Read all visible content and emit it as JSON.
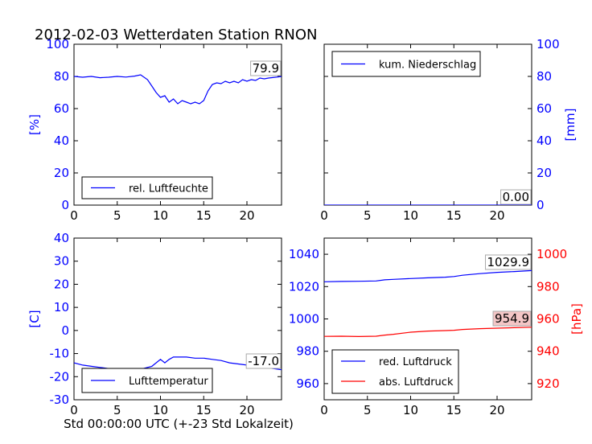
{
  "figure": {
    "title": "2012-02-03 Wetterdaten Station RNON",
    "xlabel": "Std 00:00:00 UTC (+-23 Std Lokalzeit)"
  },
  "colors": {
    "blue": "#0000ff",
    "red": "#ff0000",
    "black": "#000000"
  },
  "chart_data": [
    {
      "type": "line",
      "panel": "top-left",
      "xlim": [
        0,
        24
      ],
      "ylim": [
        0,
        100
      ],
      "xticks": [
        0,
        5,
        10,
        15,
        20
      ],
      "yticks": [
        0,
        20,
        40,
        60,
        80,
        100
      ],
      "ylabel": "[%]",
      "ylabel_color": "#0000ff",
      "legend_position": "lower-left",
      "series": [
        {
          "name": "rel. Luftfeuchte",
          "color": "#0000ff",
          "x": [
            0,
            1,
            2,
            3,
            4,
            5,
            6,
            7,
            7.7,
            8.5,
            9,
            9.5,
            10,
            10.5,
            11,
            11.5,
            12,
            12.5,
            13,
            13.5,
            14,
            14.5,
            15,
            15.5,
            16,
            16.5,
            17,
            17.5,
            18,
            18.5,
            19,
            19.5,
            20,
            20.5,
            21,
            21.5,
            22,
            22.5,
            23,
            24
          ],
          "y": [
            80,
            79.5,
            80,
            79.2,
            79.5,
            80,
            79.6,
            80.2,
            81,
            78,
            74,
            70,
            67,
            68,
            64,
            66,
            63,
            65,
            64,
            63,
            64,
            63,
            65,
            71,
            75,
            76,
            75.5,
            77,
            76,
            77,
            76,
            78,
            77,
            78,
            77.5,
            79,
            78.5,
            79,
            79.3,
            79.9
          ]
        }
      ],
      "annotation": "79.9"
    },
    {
      "type": "line",
      "panel": "top-right",
      "xlim": [
        0,
        24
      ],
      "ylim": [
        0,
        100
      ],
      "xticks": [
        0,
        5,
        10,
        15,
        20
      ],
      "yticks": [
        0,
        20,
        40,
        60,
        80,
        100
      ],
      "ylabel": "[mm]",
      "ylabel_color": "#0000ff",
      "legend_position": "top-left",
      "series": [
        {
          "name": "kum. Niederschlag",
          "color": "#0000ff",
          "x": [
            0,
            24
          ],
          "y": [
            0,
            0
          ]
        }
      ],
      "annotation": "0.00"
    },
    {
      "type": "line",
      "panel": "bottom-left",
      "xlim": [
        0,
        24
      ],
      "ylim": [
        -30,
        40
      ],
      "xticks": [
        0,
        5,
        10,
        15,
        20
      ],
      "yticks": [
        -30,
        -20,
        -10,
        0,
        10,
        20,
        30,
        40
      ],
      "ylabel": "[C]",
      "ylabel_color": "#0000ff",
      "legend_position": "lower-left",
      "series": [
        {
          "name": "Lufttemperatur",
          "color": "#0000ff",
          "x": [
            0,
            1,
            2,
            3,
            4,
            5,
            6,
            7,
            8,
            9,
            9.5,
            10,
            10.5,
            11,
            11.5,
            12,
            13,
            14,
            15,
            16,
            17,
            18,
            19,
            20,
            21,
            22,
            23,
            24
          ],
          "y": [
            -14,
            -15,
            -15.5,
            -16,
            -16.5,
            -17,
            -17,
            -17,
            -16.5,
            -15.5,
            -14,
            -12.5,
            -14,
            -12.5,
            -11.5,
            -11.5,
            -11.5,
            -12,
            -12,
            -12.5,
            -13,
            -14,
            -14.5,
            -15,
            -15.5,
            -16,
            -16.5,
            -17
          ]
        }
      ],
      "annotation": "-17.0"
    },
    {
      "type": "line",
      "panel": "bottom-right",
      "xlim": [
        0,
        24
      ],
      "ylim": [
        950,
        1050
      ],
      "xticks": [
        0,
        5,
        10,
        15,
        20
      ],
      "yticks": [
        960,
        980,
        1000,
        1020,
        1040
      ],
      "ylim_right": [
        910,
        1010
      ],
      "yticks_right": [
        920,
        940,
        960,
        980,
        1000
      ],
      "ylabel_right": "[hPa]",
      "ylabel_right_color": "#ff0000",
      "legend_position": "lower-left",
      "series": [
        {
          "name": "red. Luftdruck",
          "color": "#0000ff",
          "axis": "left",
          "x": [
            0,
            2,
            4,
            6,
            7,
            8,
            10,
            12,
            14,
            15,
            16,
            18,
            20,
            22,
            24
          ],
          "y": [
            1023,
            1023.2,
            1023.3,
            1023.5,
            1024.2,
            1024.5,
            1025,
            1025.4,
            1025.8,
            1026.2,
            1027,
            1028,
            1028.8,
            1029.3,
            1029.9
          ]
        },
        {
          "name": "abs. Luftdruck",
          "color": "#ff0000",
          "axis": "right",
          "x": [
            0,
            2,
            4,
            6,
            7,
            8,
            10,
            12,
            14,
            15,
            16,
            18,
            20,
            22,
            24
          ],
          "y": [
            949.2,
            949.3,
            949.1,
            949.3,
            950,
            950.5,
            951.8,
            952.5,
            952.8,
            953,
            953.5,
            954,
            954.3,
            954.6,
            954.9
          ]
        }
      ],
      "annotations": [
        "1029.9",
        "954.9"
      ]
    }
  ]
}
